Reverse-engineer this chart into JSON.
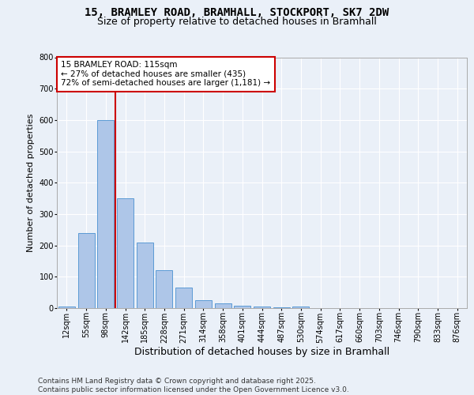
{
  "title_line1": "15, BRAMLEY ROAD, BRAMHALL, STOCKPORT, SK7 2DW",
  "title_line2": "Size of property relative to detached houses in Bramhall",
  "xlabel": "Distribution of detached houses by size in Bramhall",
  "ylabel": "Number of detached properties",
  "categories": [
    "12sqm",
    "55sqm",
    "98sqm",
    "142sqm",
    "185sqm",
    "228sqm",
    "271sqm",
    "314sqm",
    "358sqm",
    "401sqm",
    "444sqm",
    "487sqm",
    "530sqm",
    "574sqm",
    "617sqm",
    "660sqm",
    "703sqm",
    "746sqm",
    "790sqm",
    "833sqm",
    "876sqm"
  ],
  "values": [
    5,
    240,
    600,
    350,
    210,
    120,
    65,
    25,
    15,
    7,
    5,
    2,
    6,
    0,
    0,
    0,
    0,
    0,
    0,
    0,
    0
  ],
  "bar_color": "#aec6e8",
  "bar_edge_color": "#5b9bd5",
  "vline_x": 2.5,
  "vline_color": "#cc0000",
  "annotation_text": "15 BRAMLEY ROAD: 115sqm\n← 27% of detached houses are smaller (435)\n72% of semi-detached houses are larger (1,181) →",
  "annotation_box_color": "#ffffff",
  "annotation_box_edge_color": "#cc0000",
  "ylim": [
    0,
    800
  ],
  "yticks": [
    0,
    100,
    200,
    300,
    400,
    500,
    600,
    700,
    800
  ],
  "bg_color": "#eaf0f8",
  "plot_bg_color": "#eaf0f8",
  "footer_line1": "Contains HM Land Registry data © Crown copyright and database right 2025.",
  "footer_line2": "Contains public sector information licensed under the Open Government Licence v3.0.",
  "title_fontsize": 10,
  "subtitle_fontsize": 9,
  "xlabel_fontsize": 9,
  "ylabel_fontsize": 8,
  "tick_fontsize": 7,
  "footer_fontsize": 6.5,
  "annotation_fontsize": 7.5
}
